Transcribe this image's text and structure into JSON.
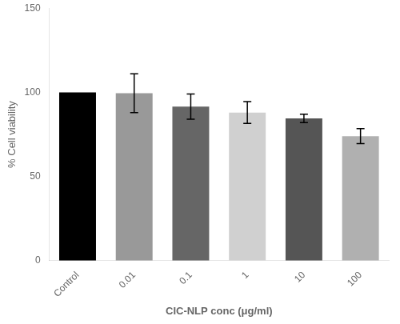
{
  "chart_data": {
    "type": "bar",
    "categories": [
      "Control",
      "0.01",
      "0.1",
      "1",
      "10",
      "100"
    ],
    "values": [
      100,
      99.5,
      91.5,
      88.0,
      84.5,
      74.0
    ],
    "errors": [
      0,
      11.5,
      7.5,
      6.5,
      2.5,
      4.5
    ],
    "colors": [
      "#000000",
      "#999999",
      "#666666",
      "#d0d0d0",
      "#555555",
      "#b0b0b0"
    ],
    "xlabel": "CIC-NLP conc (μg/ml)",
    "ylabel": "% Cell viability",
    "ylim": [
      0,
      150
    ],
    "yticks": [
      0,
      50,
      100,
      150
    ],
    "grid": false
  }
}
